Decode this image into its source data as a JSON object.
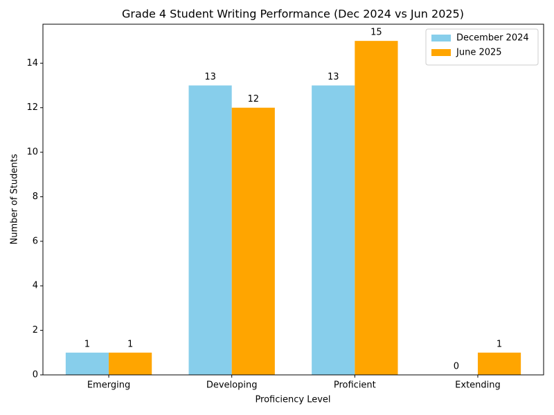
{
  "chart_data": {
    "type": "bar",
    "title": "Grade 4 Student Writing Performance (Dec 2024 vs Jun 2025)",
    "x_label": "Proficiency Level",
    "y_label": "Number of Students",
    "categories": [
      "Emerging",
      "Developing",
      "Proficient",
      "Extending"
    ],
    "series": [
      {
        "name": "December 2024",
        "color": "#87ceeb",
        "values": [
          1,
          13,
          13,
          0
        ]
      },
      {
        "name": "June 2025",
        "color": "#ffa500",
        "values": [
          1,
          12,
          15,
          1
        ]
      }
    ],
    "ylim": [
      0,
      15.75
    ],
    "yticks": [
      0,
      2,
      4,
      6,
      8,
      10,
      12,
      14
    ],
    "legend": "upper right"
  }
}
